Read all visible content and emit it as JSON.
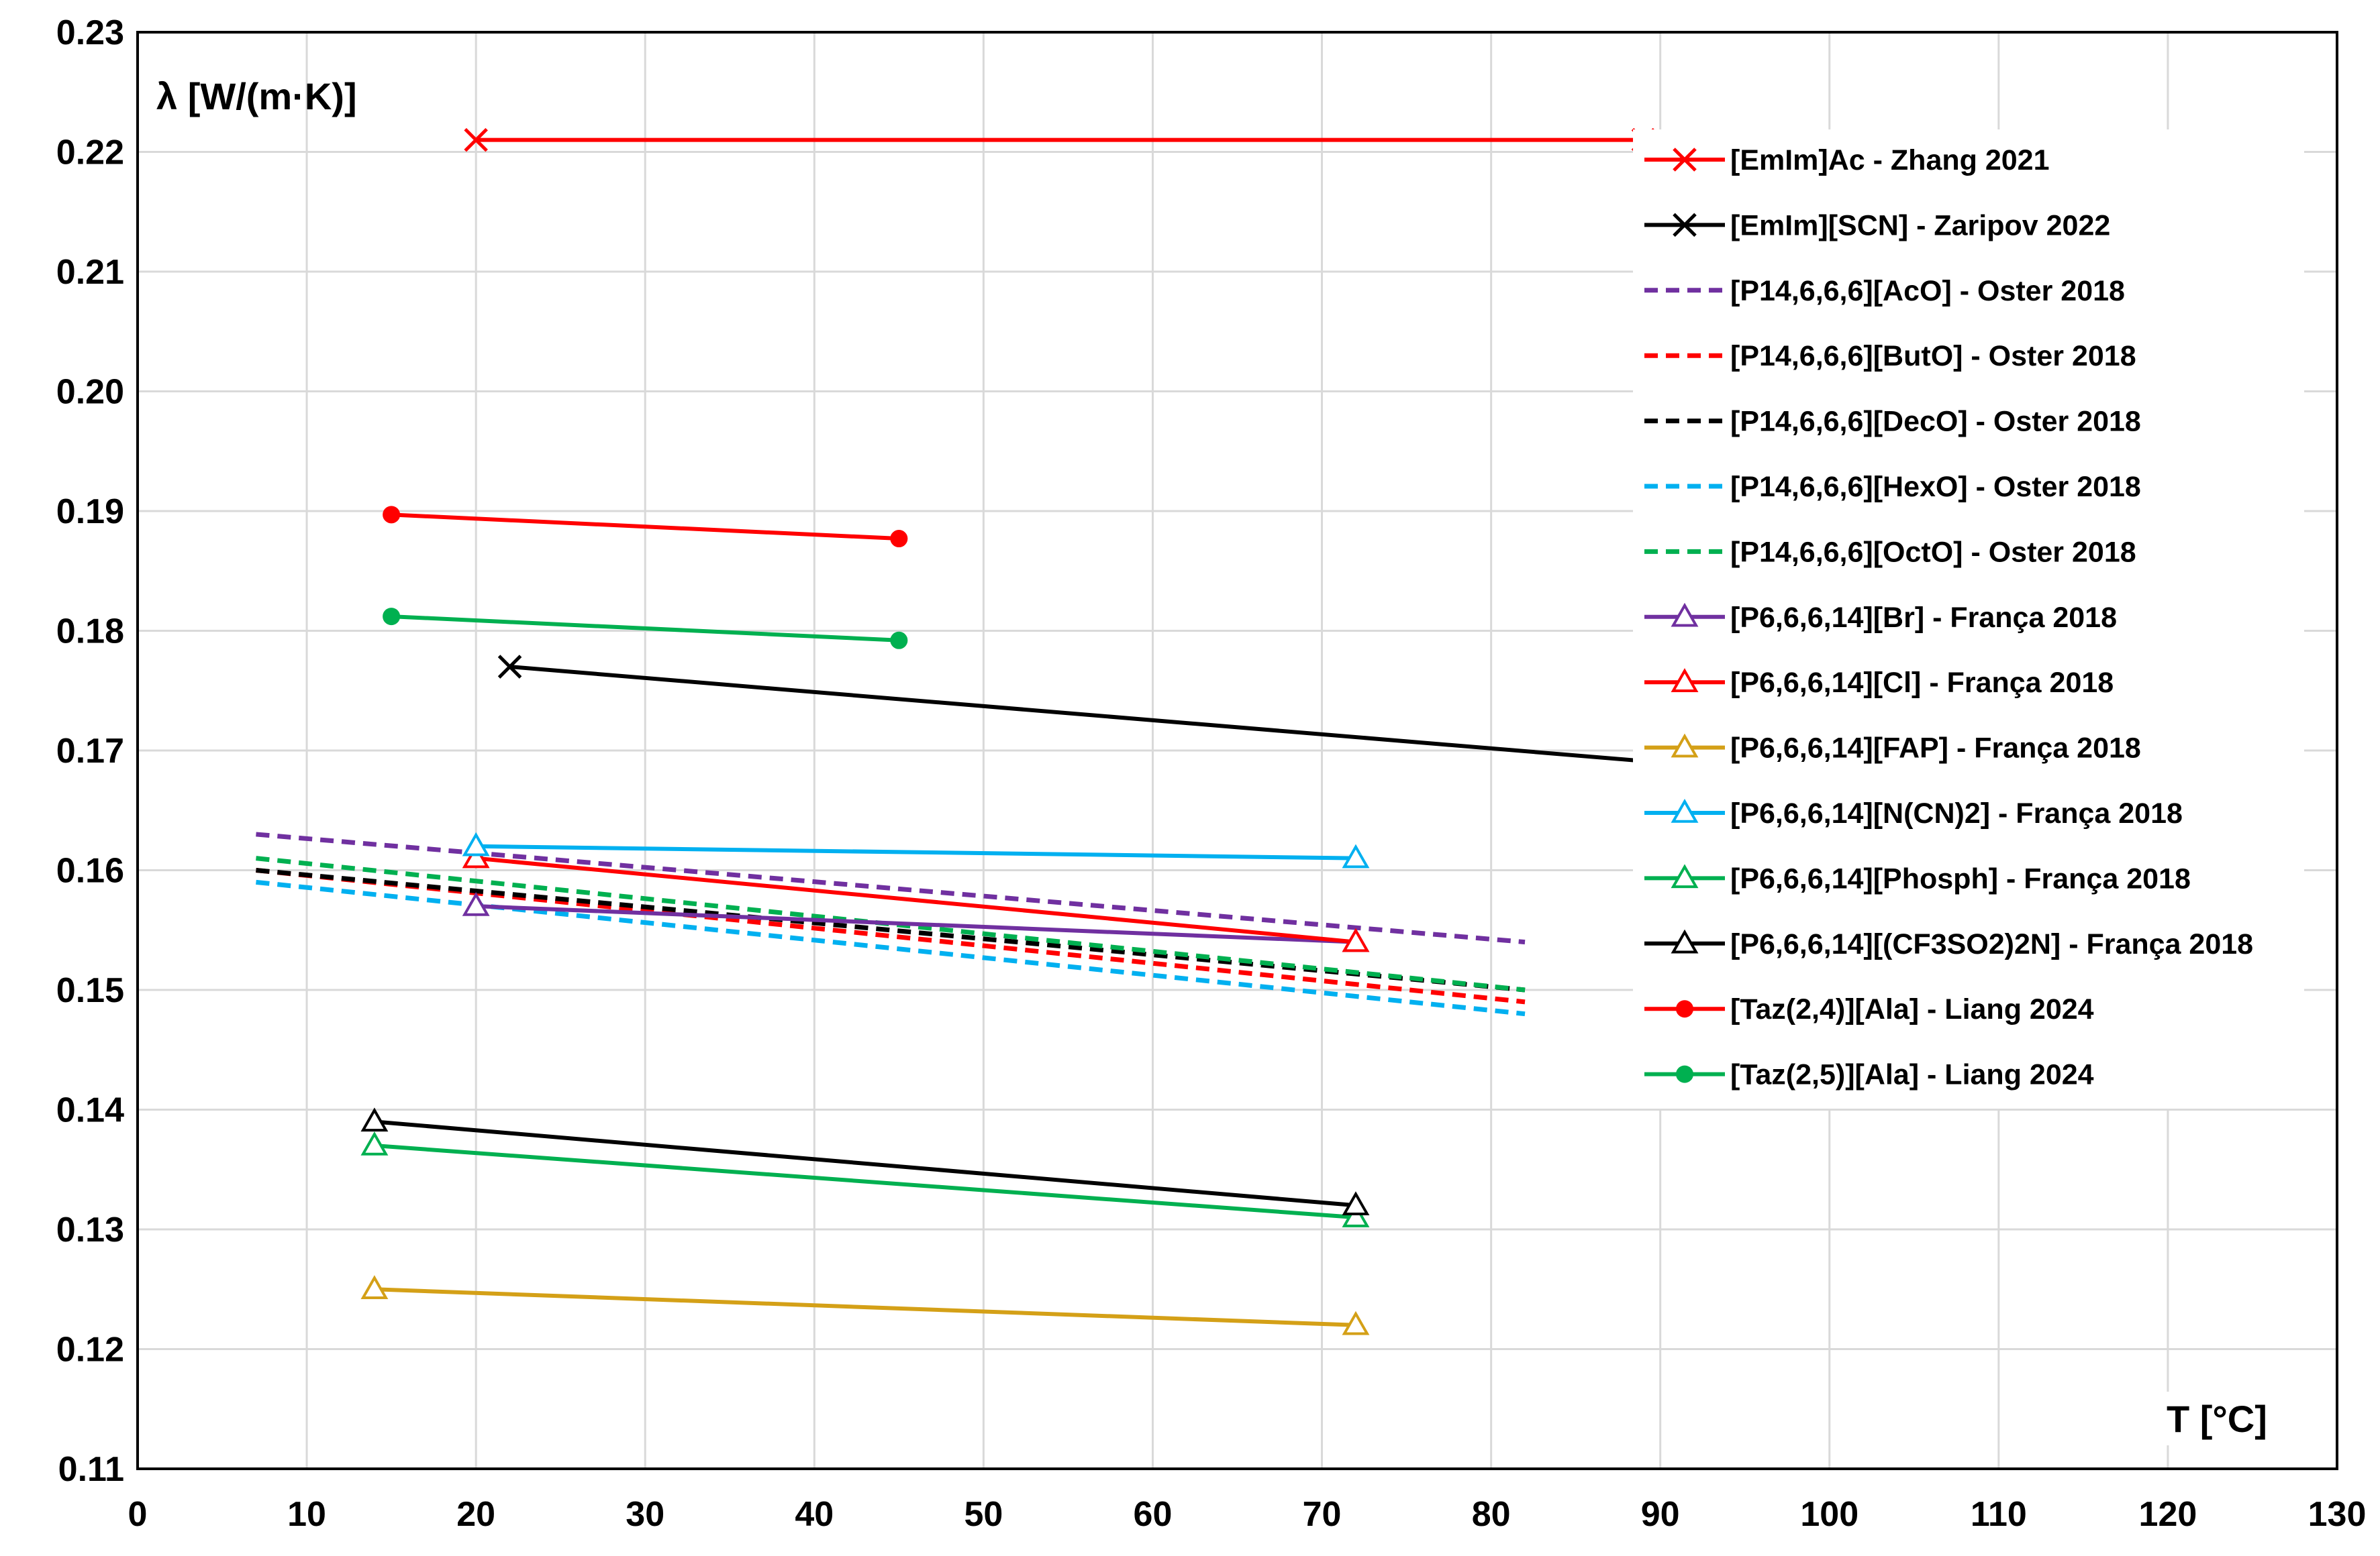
{
  "chart_data": {
    "type": "line",
    "title": "",
    "xlabel": "T [°C]",
    "ylabel": "λ [W/(m·K)]",
    "xlim": [
      0,
      130
    ],
    "ylim": [
      0.11,
      0.23
    ],
    "xticks": [
      0,
      10,
      20,
      30,
      40,
      50,
      60,
      70,
      80,
      90,
      100,
      110,
      120,
      130
    ],
    "yticks": [
      0.11,
      0.12,
      0.13,
      0.14,
      0.15,
      0.16,
      0.17,
      0.18,
      0.19,
      0.2,
      0.21,
      0.22,
      0.23
    ],
    "ytick_labels": [
      "0.11",
      "0.12",
      "0.13",
      "0.14",
      "0.15",
      "0.16",
      "0.17",
      "0.18",
      "0.19",
      "0.20",
      "0.21",
      "0.22",
      "0.23"
    ],
    "grid": true,
    "legend_position": "right",
    "series": [
      {
        "name": "[EmIm]Ac - Zhang 2021",
        "color": "#ff0000",
        "dash": "solid",
        "marker": "x",
        "x": [
          20,
          89
        ],
        "y": [
          0.221,
          0.221
        ]
      },
      {
        "name": "[EmIm][SCN] - Zaripov 2022",
        "color": "#000000",
        "dash": "solid",
        "marker": "x",
        "x": [
          22,
          90
        ],
        "y": [
          0.177,
          0.169
        ]
      },
      {
        "name": "[P14,6,6,6][AcO] - Oster 2018",
        "color": "#7030a0",
        "dash": "dashed",
        "marker": "none",
        "x": [
          7,
          82
        ],
        "y": [
          0.163,
          0.154
        ]
      },
      {
        "name": "[P14,6,6,6][ButO] - Oster 2018",
        "color": "#ff0000",
        "dash": "dashed",
        "marker": "none",
        "x": [
          7,
          82
        ],
        "y": [
          0.16,
          0.149
        ]
      },
      {
        "name": "[P14,6,6,6][DecO] - Oster 2018",
        "color": "#000000",
        "dash": "dashed",
        "marker": "none",
        "x": [
          7,
          82
        ],
        "y": [
          0.16,
          0.15
        ]
      },
      {
        "name": "[P14,6,6,6][HexO] - Oster 2018",
        "color": "#00b0f0",
        "dash": "dashed",
        "marker": "none",
        "x": [
          7,
          82
        ],
        "y": [
          0.159,
          0.148
        ]
      },
      {
        "name": "[P14,6,6,6][OctO] - Oster 2018",
        "color": "#00b050",
        "dash": "dashed",
        "marker": "none",
        "x": [
          7,
          82
        ],
        "y": [
          0.161,
          0.15
        ]
      },
      {
        "name": "[P6,6,6,14][Br] - França 2018",
        "color": "#7030a0",
        "dash": "solid",
        "marker": "triangle",
        "x": [
          20,
          72
        ],
        "y": [
          0.157,
          0.154
        ]
      },
      {
        "name": "[P6,6,6,14][Cl] - França 2018",
        "color": "#ff0000",
        "dash": "solid",
        "marker": "triangle",
        "x": [
          20,
          72
        ],
        "y": [
          0.161,
          0.154
        ]
      },
      {
        "name": "[P6,6,6,14][FAP] - França 2018",
        "color": "#d4a017",
        "dash": "solid",
        "marker": "triangle",
        "x": [
          14,
          72
        ],
        "y": [
          0.125,
          0.122
        ]
      },
      {
        "name": "[P6,6,6,14][N(CN)2] - França 2018",
        "color": "#00b0f0",
        "dash": "solid",
        "marker": "triangle",
        "x": [
          20,
          72
        ],
        "y": [
          0.162,
          0.161
        ]
      },
      {
        "name": "[P6,6,6,14][Phosph] - França 2018",
        "color": "#00b050",
        "dash": "solid",
        "marker": "triangle",
        "x": [
          14,
          72
        ],
        "y": [
          0.137,
          0.131
        ]
      },
      {
        "name": "[P6,6,6,14][(CF3SO2)2N] - França 2018",
        "color": "#000000",
        "dash": "solid",
        "marker": "triangle",
        "x": [
          14,
          72
        ],
        "y": [
          0.139,
          0.132
        ]
      },
      {
        "name": "[Taz(2,4)][Ala] - Liang 2024",
        "color": "#ff0000",
        "dash": "solid",
        "marker": "circle",
        "x": [
          15,
          45
        ],
        "y": [
          0.1897,
          0.1877
        ]
      },
      {
        "name": "[Taz(2,5)][Ala] - Liang 2024",
        "color": "#00b050",
        "dash": "solid",
        "marker": "circle",
        "x": [
          15,
          45
        ],
        "y": [
          0.1812,
          0.1792
        ]
      }
    ]
  }
}
